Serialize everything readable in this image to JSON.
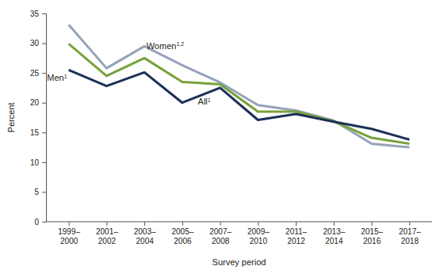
{
  "chart_data": {
    "type": "line",
    "x_label": "Survey period",
    "y_label": "Percent",
    "categories": [
      "1999–2000",
      "2001–2002",
      "2003–2004",
      "2005–2006",
      "2007–2008",
      "2009–2010",
      "2011–2012",
      "2013–2014",
      "2015–2016",
      "2017–2018"
    ],
    "series": [
      {
        "name": "Women",
        "name_sup": "1,2",
        "color": "#95a3b8",
        "values": [
          33.1,
          25.8,
          29.5,
          26.3,
          23.4,
          19.6,
          18.7,
          17.0,
          13.1,
          12.5
        ]
      },
      {
        "name": "All",
        "name_sup": "1",
        "color": "#78a23c",
        "values": [
          29.9,
          24.5,
          27.5,
          23.5,
          23.1,
          18.5,
          18.5,
          16.9,
          14.1,
          13.1
        ]
      },
      {
        "name": "Men",
        "name_sup": "1",
        "color": "#1c3059",
        "values": [
          25.5,
          22.8,
          25.1,
          20.0,
          22.5,
          17.1,
          18.1,
          16.8,
          15.6,
          13.8
        ]
      }
    ],
    "ylim": [
      0,
      35
    ],
    "yticks": [
      0,
      5,
      10,
      15,
      20,
      25,
      30,
      35
    ],
    "grid": false
  }
}
